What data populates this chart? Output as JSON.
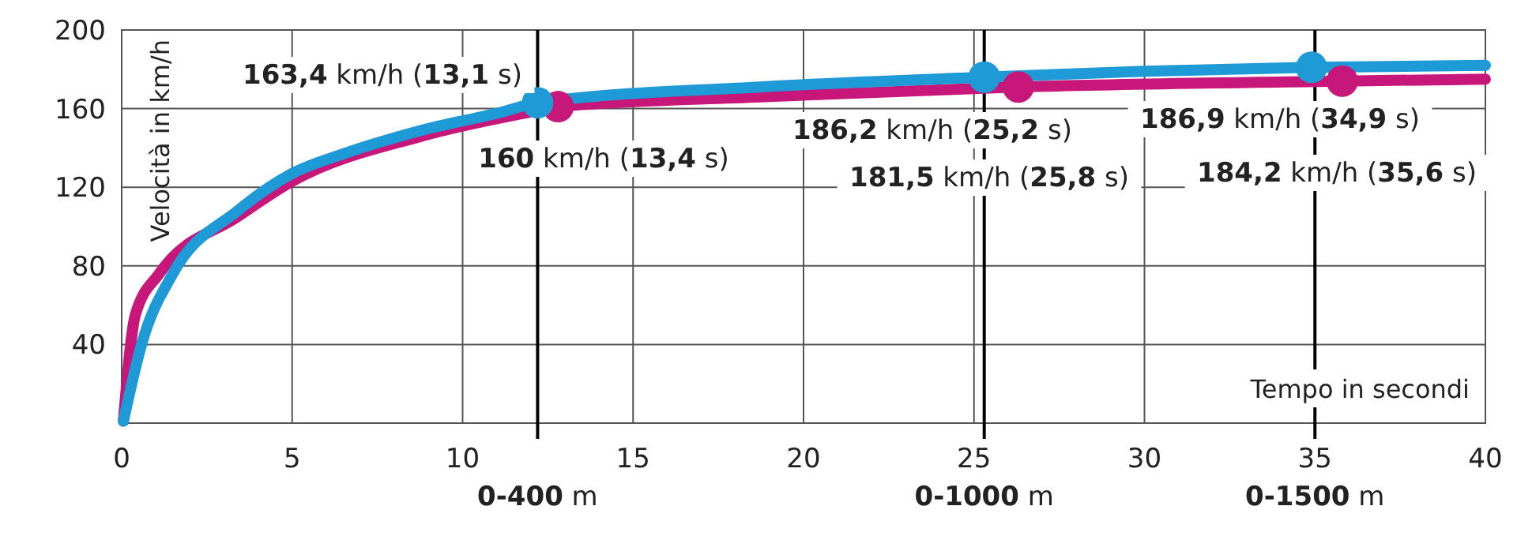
{
  "chart_data": {
    "type": "line",
    "xlabel": "Tempo in secondi",
    "ylabel": "Velocità in km/h",
    "xlim": [
      0,
      40
    ],
    "xticks": [
      0,
      5,
      10,
      15,
      20,
      25,
      30,
      35,
      40
    ],
    "ylim": [
      0,
      200
    ],
    "yticks": [
      40,
      80,
      120,
      160,
      200
    ],
    "grid": true,
    "marker": "none",
    "line_style": "solid",
    "series": [
      {
        "color": "#c8177a",
        "x": [
          0.05,
          0.4,
          1.1,
          3.4,
          5.0,
          8.8,
          11.9,
          12.8,
          18.7,
          26.3,
          35.8,
          40
        ],
        "values": [
          1,
          55,
          76,
          105,
          123,
          146,
          158,
          161,
          166,
          171,
          174,
          175
        ]
      },
      {
        "color": "#1e9ad6",
        "x": [
          0.05,
          0.6,
          1.5,
          3.4,
          5.0,
          6.5,
          8.8,
          11.1,
          12.2,
          18.7,
          25.3,
          30.0,
          34.9,
          40
        ],
        "values": [
          1,
          41,
          76,
          108,
          127,
          137,
          149,
          158,
          163,
          171,
          176,
          179,
          181,
          182
        ]
      },
      {
        "type": "scatter",
        "color": "#c8177a",
        "marker": "circle",
        "x": [
          12.8,
          26.3,
          35.8
        ],
        "values": [
          161,
          171,
          174
        ]
      },
      {
        "type": "scatter",
        "color": "#1e9ad6",
        "marker": "circle",
        "x": [
          12.2,
          25.3,
          34.9
        ],
        "values": [
          163,
          176,
          181
        ]
      }
    ],
    "ref_lines": [
      {
        "axis": "x",
        "value": 12.2,
        "label": "0-400 m",
        "color": "#000000"
      },
      {
        "axis": "x",
        "value": 25.3,
        "label": "0-1000 m",
        "color": "#000000"
      },
      {
        "axis": "x",
        "value": 35.0,
        "label": "0-1500 m",
        "color": "#000000"
      }
    ],
    "annotations": [
      "163,4 km/h (13,1 s)",
      "160 km/h (13,4 s)",
      "186,2 km/h (25,2 s)",
      "181,5 km/h (25,8 s)",
      "186,9 km/h (34,9 s)",
      "184,2 km/h (35,6 s)"
    ]
  }
}
